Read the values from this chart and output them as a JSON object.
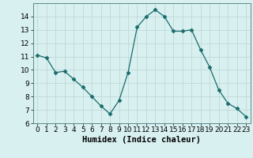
{
  "x": [
    0,
    1,
    2,
    3,
    4,
    5,
    6,
    7,
    8,
    9,
    10,
    11,
    12,
    13,
    14,
    15,
    16,
    17,
    18,
    19,
    20,
    21,
    22,
    23
  ],
  "y": [
    11.1,
    10.9,
    9.8,
    9.9,
    9.3,
    8.7,
    8.0,
    7.3,
    6.7,
    7.7,
    9.8,
    13.2,
    14.0,
    14.5,
    14.0,
    12.9,
    12.9,
    13.0,
    11.5,
    10.2,
    8.5,
    7.5,
    7.1,
    6.5
  ],
  "line_color": "#1a6b6b",
  "marker": "D",
  "marker_size": 2.5,
  "bg_color": "#d8f0f0",
  "grid_color": "#c0d8d8",
  "xlabel": "Humidex (Indice chaleur)",
  "xlim": [
    -0.5,
    23.5
  ],
  "ylim": [
    6,
    15
  ],
  "yticks": [
    6,
    7,
    8,
    9,
    10,
    11,
    12,
    13,
    14
  ],
  "xticks": [
    0,
    1,
    2,
    3,
    4,
    5,
    6,
    7,
    8,
    9,
    10,
    11,
    12,
    13,
    14,
    15,
    16,
    17,
    18,
    19,
    20,
    21,
    22,
    23
  ],
  "xlabel_fontsize": 7.5,
  "tick_fontsize": 6.5
}
